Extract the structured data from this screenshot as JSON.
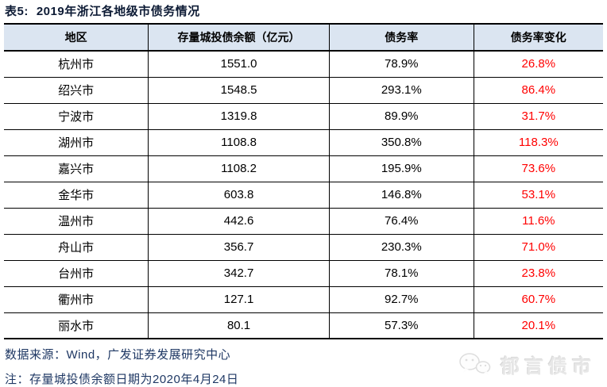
{
  "title": {
    "prefix": "表5:",
    "text": "2019年浙江各地级市债务情况"
  },
  "table": {
    "headers": [
      "地区",
      "存量城投债余额（亿元）",
      "债务率",
      "债务率变化"
    ],
    "rows": [
      {
        "region": "杭州市",
        "balance": "1551.0",
        "debt_ratio": "78.9%",
        "change": "26.8%"
      },
      {
        "region": "绍兴市",
        "balance": "1548.5",
        "debt_ratio": "293.1%",
        "change": "86.4%"
      },
      {
        "region": "宁波市",
        "balance": "1319.8",
        "debt_ratio": "89.9%",
        "change": "31.7%"
      },
      {
        "region": "湖州市",
        "balance": "1108.8",
        "debt_ratio": "350.8%",
        "change": "118.3%"
      },
      {
        "region": "嘉兴市",
        "balance": "1108.2",
        "debt_ratio": "195.9%",
        "change": "73.6%"
      },
      {
        "region": "金华市",
        "balance": "603.8",
        "debt_ratio": "146.8%",
        "change": "53.1%"
      },
      {
        "region": "温州市",
        "balance": "442.6",
        "debt_ratio": "76.4%",
        "change": "11.6%"
      },
      {
        "region": "舟山市",
        "balance": "356.7",
        "debt_ratio": "230.3%",
        "change": "71.0%"
      },
      {
        "region": "台州市",
        "balance": "342.7",
        "debt_ratio": "78.1%",
        "change": "23.8%"
      },
      {
        "region": "衢州市",
        "balance": "127.1",
        "debt_ratio": "92.7%",
        "change": "60.7%"
      },
      {
        "region": "丽水市",
        "balance": "80.1",
        "debt_ratio": "57.3%",
        "change": "20.1%"
      }
    ]
  },
  "footer": {
    "source": "数据来源：Wind，广发证券发展研究中心",
    "note": "注：存量城投债余额日期为2020年4月24日"
  },
  "watermark": {
    "text": "郁言债市"
  },
  "colors": {
    "header_bg": "#dbe5f1",
    "change_red": "#ff0000",
    "note_navy": "#1f3864",
    "border": "#000000",
    "watermark_gray": "#e7e7e7"
  }
}
